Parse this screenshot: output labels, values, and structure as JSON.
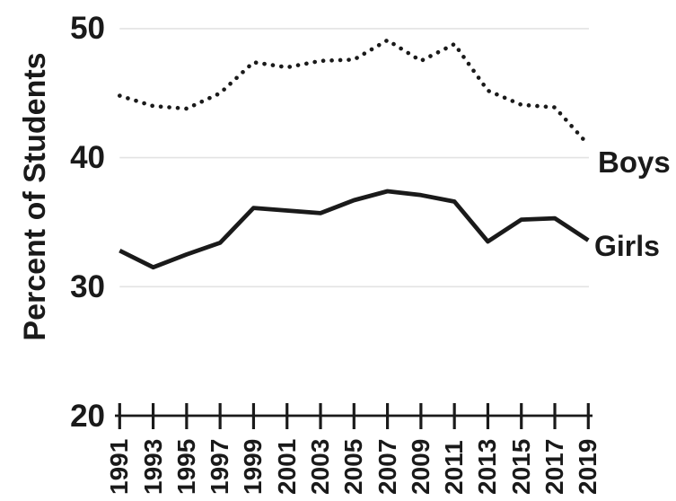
{
  "page": {
    "background": "#ffffff"
  },
  "colors": {
    "line": "#1a1a1a",
    "text": "#1a1a1a",
    "gridline": "#e3e3e3",
    "background": "#ffffff"
  },
  "chart_data": {
    "type": "line",
    "title": "",
    "xlabel": "",
    "ylabel": "Percent of Students",
    "x": [
      1991,
      1993,
      1995,
      1997,
      1999,
      2001,
      2003,
      2005,
      2007,
      2009,
      2011,
      2013,
      2015,
      2017,
      2019
    ],
    "x_tick_labels": [
      "1991",
      "1993",
      "1995",
      "1997",
      "1999",
      "2001",
      "2003",
      "2005",
      "2007",
      "2009",
      "2011",
      "2013",
      "2015",
      "2017",
      "2019"
    ],
    "xlim": [
      1991,
      2019
    ],
    "y_ticks": [
      50,
      40,
      30,
      20
    ],
    "ylim": [
      20,
      50
    ],
    "grid": "light horizontal gridlines at 30, 40, 50; solid x-axis baseline at 20 with cross tick marks every 2 years",
    "legend_position": "labels at right end of each line",
    "series": [
      {
        "name": "Boys",
        "line_style": "dotted",
        "color": "#1a1a1a",
        "values": [
          44.8,
          44.0,
          43.8,
          45.0,
          47.4,
          47.0,
          47.5,
          47.6,
          49.1,
          47.5,
          48.8,
          45.2,
          44.1,
          43.9,
          41.0
        ]
      },
      {
        "name": "Girls",
        "line_style": "solid",
        "color": "#1a1a1a",
        "values": [
          32.8,
          31.5,
          32.5,
          33.4,
          36.1,
          35.9,
          35.7,
          36.7,
          37.4,
          37.1,
          36.6,
          33.5,
          35.2,
          35.3,
          33.6
        ]
      }
    ]
  }
}
